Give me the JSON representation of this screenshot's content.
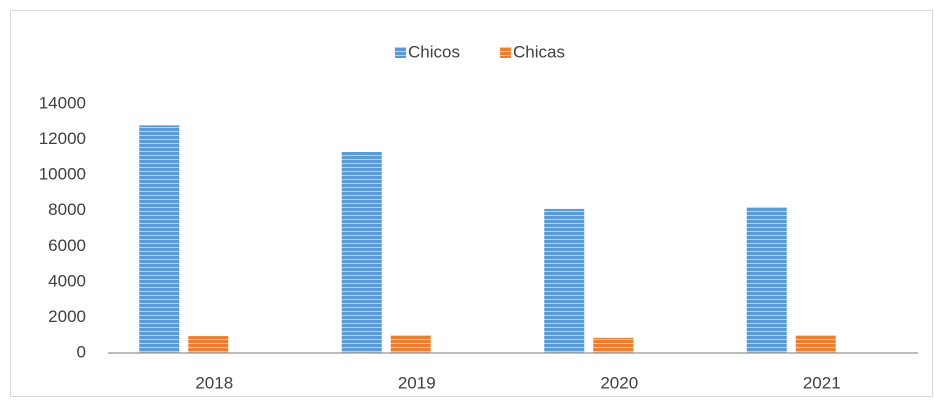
{
  "chart_data": {
    "type": "bar",
    "categories": [
      "2018",
      "2019",
      "2020",
      "2021"
    ],
    "series": [
      {
        "name": "Chicos",
        "color": "#5b9bd5",
        "values": [
          12800,
          11300,
          8100,
          8200
        ]
      },
      {
        "name": "Chicas",
        "color": "#ed7d31",
        "values": [
          950,
          1000,
          850,
          1000
        ]
      }
    ],
    "ylim": [
      0,
      14000
    ],
    "yticks": [
      0,
      2000,
      4000,
      6000,
      8000,
      10000,
      12000,
      14000
    ],
    "grid": false,
    "legend": "top"
  }
}
